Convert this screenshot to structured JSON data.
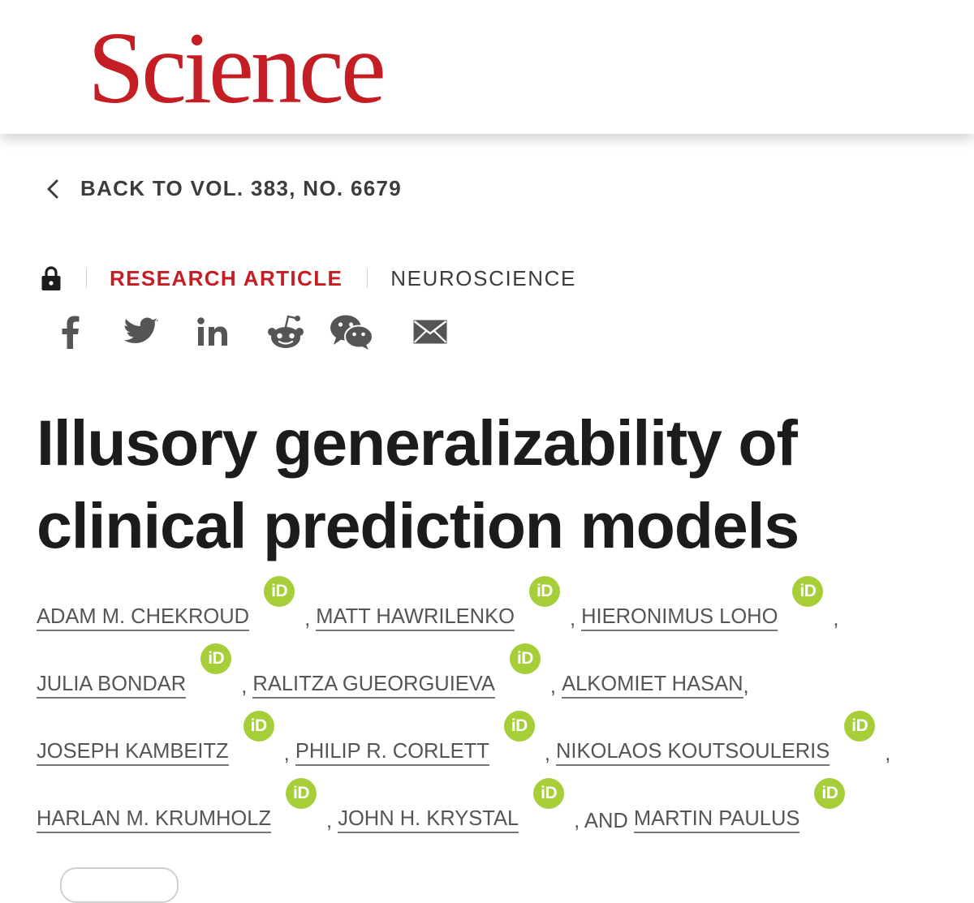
{
  "brand": {
    "logo_text": "Science",
    "color": "#c41e24"
  },
  "nav": {
    "back_label": "BACK TO VOL. 383, NO. 6679"
  },
  "article_meta": {
    "access_icon": "lock-icon",
    "type": "RESEARCH ARTICLE",
    "subject": "NEUROSCIENCE"
  },
  "share": {
    "icons": [
      "facebook-icon",
      "twitter-icon",
      "linkedin-icon",
      "reddit-icon",
      "wechat-icon",
      "email-icon"
    ]
  },
  "article": {
    "title_line1": "Illusory generalizability of",
    "title_line2": "clinical prediction models"
  },
  "authors": {
    "names": [
      "ADAM M. CHEKROUD",
      "MATT HAWRILENKO",
      "HIERONIMUS LOHO",
      "JULIA BONDAR",
      "RALITZA GUEORGUIEVA",
      "ALKOMIET HASAN",
      "JOSEPH KAMBEITZ",
      "PHILIP R. CORLETT",
      "NIKOLAOS KOUTSOULERIS",
      "HARLAN M. KRUMHOLZ",
      "JOHN H. KRYSTAL",
      "MARTIN PAULUS"
    ],
    "separator": ",",
    "conjunction": ", AND",
    "orcid_label": "iD",
    "orcid_color": "#a6ce39"
  }
}
